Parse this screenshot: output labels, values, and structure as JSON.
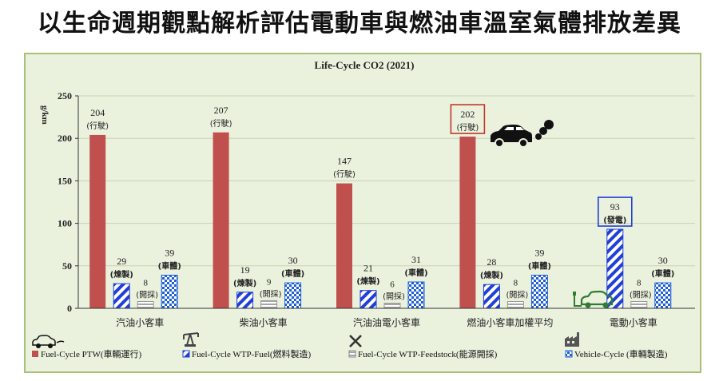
{
  "page_title": "以生命週期觀點解析評估電動車與燃油車溫室氣體排放差異",
  "chart_data": {
    "type": "bar",
    "title": "Life-Cycle CO2 (2021)",
    "ylabel": "g/km",
    "ylim": [
      0,
      250
    ],
    "yticks": [
      0,
      50,
      100,
      150,
      200,
      250
    ],
    "grid": true,
    "legend_position": "bottom",
    "categories": [
      "汽油小客車",
      "柴油小客車",
      "汽油油電小客車",
      "燃油小客車加權平均",
      "電動小客車"
    ],
    "series": [
      {
        "name": "Fuel-Cycle PTW(車輛運行)",
        "style": "solid",
        "color": "#c0504d",
        "values": [
          204,
          207,
          147,
          202,
          null
        ],
        "note_labels": [
          "(行駛)",
          "(行駛)",
          "(行駛)",
          "(行駛)",
          ""
        ]
      },
      {
        "name": "Fuel-Cycle WTP-Fuel(燃料製造)",
        "style": "diagonal",
        "color": "#1f3fd6",
        "values": [
          29,
          19,
          21,
          28,
          93
        ],
        "note_labels": [
          "(煉製)",
          "(煉製)",
          "(煉製)",
          "(煉製)",
          "(發電)"
        ]
      },
      {
        "name": "Fuel-Cycle WTP-Feedstock(能源開採)",
        "style": "horizontal",
        "color": "#a6a6a6",
        "values": [
          8,
          9,
          6,
          8,
          8
        ],
        "note_labels": [
          "(開採)",
          "(開採)",
          "(開採)",
          "(開採)",
          "(開採)"
        ]
      },
      {
        "name": "Vehicle-Cycle (車輛製造)",
        "style": "checker",
        "color": "#1f5fd6",
        "values": [
          39,
          30,
          31,
          39,
          30
        ],
        "note_labels": [
          "(車體)",
          "(車體)",
          "(車體)",
          "(車體)",
          "(車體)"
        ]
      }
    ],
    "highlights": [
      {
        "category_index": 3,
        "series_index": 0
      },
      {
        "category_index": 4,
        "series_index": 1
      }
    ]
  },
  "colors": {
    "background": "#eaf1dd",
    "border": "#a9c07a",
    "highlight_box_red": "#c0392b",
    "highlight_box_blue": "#1f3fd6"
  },
  "icons": [
    "car-emission-icon",
    "electric-car-icon",
    "oil-pump-icon",
    "tools-icon",
    "factory-icon"
  ]
}
